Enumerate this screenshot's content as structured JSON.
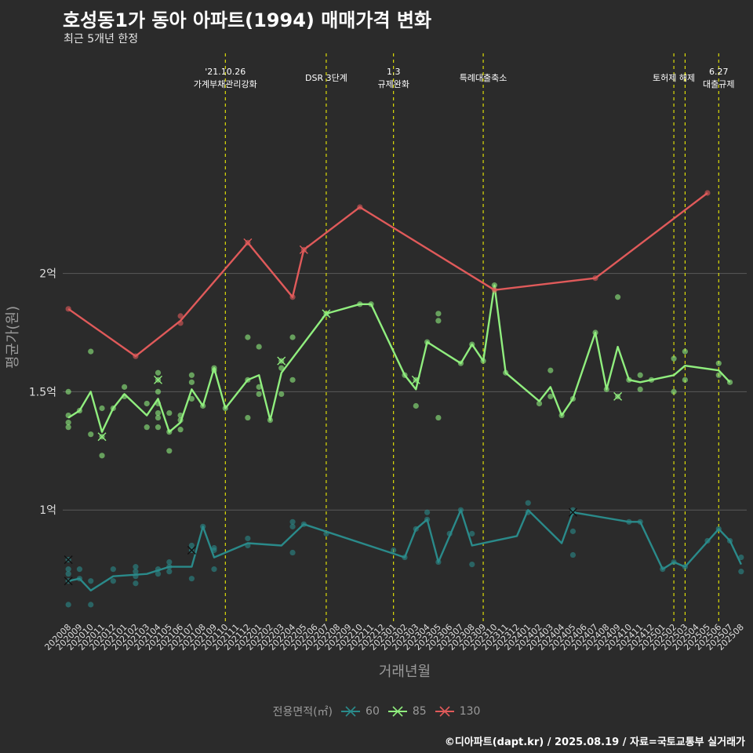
{
  "title": "호성동1가 동아 아파트(1994) 매매가격 변화",
  "subtitle": "최근 5개년 한정",
  "caption": "©디아파트(dapt.kr) / 2025.08.19 / 자료=국토교통부 실거래가",
  "colors": {
    "background": "#2b2b2b",
    "grid": "#5a5a5a",
    "event_line": "#ffff00",
    "s60": "#2a8a8a",
    "s85": "#90ee7e",
    "s130": "#e05a5a"
  },
  "chart_data": {
    "type": "line",
    "xlabel": "거래년월",
    "ylabel": "평균가(원)",
    "ylim": [
      0.53,
      2.95
    ],
    "y_unit": "억",
    "y_ticks": [
      {
        "value": 1.0,
        "label": "1억"
      },
      {
        "value": 1.5,
        "label": "1.5억"
      },
      {
        "value": 2.0,
        "label": "2억"
      }
    ],
    "x_months": [
      "202008",
      "202009",
      "202010",
      "202011",
      "202012",
      "202101",
      "202102",
      "202103",
      "202104",
      "202105",
      "202106",
      "202107",
      "202108",
      "202109",
      "202110",
      "202111",
      "202112",
      "202201",
      "202202",
      "202203",
      "202204",
      "202205",
      "202206",
      "202207",
      "202208",
      "202209",
      "202210",
      "202211",
      "202212",
      "202301",
      "202302",
      "202303",
      "202304",
      "202305",
      "202306",
      "202307",
      "202308",
      "202309",
      "202310",
      "202311",
      "202312",
      "202401",
      "202402",
      "202403",
      "202404",
      "202405",
      "202406",
      "202407",
      "202408",
      "202409",
      "202410",
      "202411",
      "202412",
      "202501",
      "202502",
      "202503",
      "202504",
      "202505",
      "202506",
      "202507",
      "202508"
    ],
    "legend_title": "전용면적(㎡)",
    "events": [
      {
        "month": "202110",
        "lines": [
          "'21.10.26",
          "가계부채관리강화"
        ]
      },
      {
        "month": "202207",
        "lines": [
          "DSR 3단계"
        ]
      },
      {
        "month": "202301",
        "lines": [
          "1.3",
          "규제완화"
        ]
      },
      {
        "month": "202309",
        "lines": [
          "특례대출축소"
        ]
      },
      {
        "month": "202502",
        "lines": [
          "토허제 해제"
        ]
      },
      {
        "month": "202503",
        "lines": []
      },
      {
        "month": "202506",
        "lines": [
          "6.27",
          "대출규제"
        ]
      }
    ],
    "series": [
      {
        "name": "60",
        "color": "#2a8a8a",
        "line": [
          [
            "202008",
            0.7
          ],
          [
            "202009",
            0.71
          ],
          [
            "202010",
            0.66
          ],
          [
            "202012",
            0.72
          ],
          [
            "202103",
            0.73
          ],
          [
            "202105",
            0.76
          ],
          [
            "202107",
            0.76
          ],
          [
            "202108",
            0.93
          ],
          [
            "202109",
            0.8
          ],
          [
            "202112",
            0.86
          ],
          [
            "202203",
            0.85
          ],
          [
            "202205",
            0.94
          ],
          [
            "202302",
            0.8
          ],
          [
            "202303",
            0.92
          ],
          [
            "202304",
            0.96
          ],
          [
            "202305",
            0.78
          ],
          [
            "202307",
            1.0
          ],
          [
            "202308",
            0.85
          ],
          [
            "202312",
            0.89
          ],
          [
            "202401",
            1.0
          ],
          [
            "202404",
            0.86
          ],
          [
            "202405",
            0.99
          ],
          [
            "202410",
            0.95
          ],
          [
            "202411",
            0.95
          ],
          [
            "202501",
            0.75
          ],
          [
            "202502",
            0.78
          ],
          [
            "202503",
            0.76
          ],
          [
            "202506",
            0.92
          ],
          [
            "202507",
            0.87
          ],
          [
            "202508",
            0.77
          ]
        ],
        "points": [
          [
            "202008",
            0.79
          ],
          [
            "202008",
            0.75
          ],
          [
            "202008",
            0.73
          ],
          [
            "202008",
            0.7
          ],
          [
            "202008",
            0.6
          ],
          [
            "202009",
            0.75
          ],
          [
            "202009",
            0.71
          ],
          [
            "202010",
            0.7
          ],
          [
            "202010",
            0.6
          ],
          [
            "202012",
            0.75
          ],
          [
            "202012",
            0.7
          ],
          [
            "202102",
            0.76
          ],
          [
            "202102",
            0.74
          ],
          [
            "202102",
            0.72
          ],
          [
            "202102",
            0.69
          ],
          [
            "202104",
            0.75
          ],
          [
            "202104",
            0.73
          ],
          [
            "202105",
            0.78
          ],
          [
            "202105",
            0.76
          ],
          [
            "202105",
            0.74
          ],
          [
            "202107",
            0.85
          ],
          [
            "202107",
            0.83
          ],
          [
            "202107",
            0.71
          ],
          [
            "202108",
            0.93
          ],
          [
            "202109",
            0.84
          ],
          [
            "202109",
            0.83
          ],
          [
            "202109",
            0.75
          ],
          [
            "202112",
            0.88
          ],
          [
            "202112",
            0.85
          ],
          [
            "202204",
            0.95
          ],
          [
            "202204",
            0.93
          ],
          [
            "202204",
            0.82
          ],
          [
            "202205",
            0.94
          ],
          [
            "202207",
            0.9
          ],
          [
            "202301",
            0.83
          ],
          [
            "202302",
            0.8
          ],
          [
            "202303",
            0.92
          ],
          [
            "202304",
            0.99
          ],
          [
            "202304",
            0.96
          ],
          [
            "202305",
            0.78
          ],
          [
            "202306",
            0.9
          ],
          [
            "202307",
            1.0
          ],
          [
            "202308",
            0.9
          ],
          [
            "202308",
            0.77
          ],
          [
            "202401",
            1.03
          ],
          [
            "202401",
            0.99
          ],
          [
            "202405",
            1.0
          ],
          [
            "202405",
            0.99
          ],
          [
            "202405",
            0.91
          ],
          [
            "202405",
            0.81
          ],
          [
            "202410",
            0.95
          ],
          [
            "202411",
            0.95
          ],
          [
            "202501",
            0.75
          ],
          [
            "202502",
            0.78
          ],
          [
            "202503",
            0.76
          ],
          [
            "202505",
            0.87
          ],
          [
            "202506",
            0.92
          ],
          [
            "202507",
            0.87
          ],
          [
            "202508",
            0.8
          ],
          [
            "202508",
            0.74
          ]
        ],
        "crosses": [
          [
            "202008",
            0.79
          ],
          [
            "202008",
            0.7
          ],
          [
            "202107",
            0.83
          ],
          [
            "202405",
            0.99
          ]
        ]
      },
      {
        "name": "85",
        "color": "#90ee7e",
        "line": [
          [
            "202008",
            1.39
          ],
          [
            "202009",
            1.42
          ],
          [
            "202010",
            1.5
          ],
          [
            "202011",
            1.33
          ],
          [
            "202012",
            1.43
          ],
          [
            "202101",
            1.49
          ],
          [
            "202103",
            1.4
          ],
          [
            "202104",
            1.47
          ],
          [
            "202105",
            1.33
          ],
          [
            "202106",
            1.37
          ],
          [
            "202107",
            1.51
          ],
          [
            "202108",
            1.44
          ],
          [
            "202109",
            1.6
          ],
          [
            "202110",
            1.43
          ],
          [
            "202112",
            1.55
          ],
          [
            "202201",
            1.57
          ],
          [
            "202202",
            1.38
          ],
          [
            "202203",
            1.58
          ],
          [
            "202207",
            1.83
          ],
          [
            "202210",
            1.87
          ],
          [
            "202211",
            1.87
          ],
          [
            "202302",
            1.57
          ],
          [
            "202303",
            1.51
          ],
          [
            "202304",
            1.71
          ],
          [
            "202305",
            1.68
          ],
          [
            "202307",
            1.62
          ],
          [
            "202308",
            1.7
          ],
          [
            "202309",
            1.63
          ],
          [
            "202310",
            1.95
          ],
          [
            "202311",
            1.58
          ],
          [
            "202402",
            1.46
          ],
          [
            "202403",
            1.52
          ],
          [
            "202404",
            1.4
          ],
          [
            "202405",
            1.47
          ],
          [
            "202407",
            1.75
          ],
          [
            "202408",
            1.51
          ],
          [
            "202409",
            1.69
          ],
          [
            "202410",
            1.55
          ],
          [
            "202411",
            1.54
          ],
          [
            "202412",
            1.55
          ],
          [
            "202502",
            1.57
          ],
          [
            "202503",
            1.61
          ],
          [
            "202506",
            1.59
          ],
          [
            "202507",
            1.54
          ]
        ],
        "points": [
          [
            "202008",
            1.5
          ],
          [
            "202008",
            1.4
          ],
          [
            "202008",
            1.37
          ],
          [
            "202008",
            1.35
          ],
          [
            "202009",
            1.42
          ],
          [
            "202010",
            1.67
          ],
          [
            "202010",
            1.32
          ],
          [
            "202011",
            1.43
          ],
          [
            "202011",
            1.31
          ],
          [
            "202011",
            1.23
          ],
          [
            "202012",
            1.43
          ],
          [
            "202101",
            1.52
          ],
          [
            "202101",
            1.48
          ],
          [
            "202103",
            1.45
          ],
          [
            "202103",
            1.35
          ],
          [
            "202104",
            1.58
          ],
          [
            "202104",
            1.55
          ],
          [
            "202104",
            1.5
          ],
          [
            "202104",
            1.45
          ],
          [
            "202104",
            1.41
          ],
          [
            "202104",
            1.39
          ],
          [
            "202104",
            1.35
          ],
          [
            "202105",
            1.41
          ],
          [
            "202105",
            1.33
          ],
          [
            "202105",
            1.25
          ],
          [
            "202106",
            1.4
          ],
          [
            "202106",
            1.38
          ],
          [
            "202106",
            1.34
          ],
          [
            "202107",
            1.57
          ],
          [
            "202107",
            1.54
          ],
          [
            "202107",
            1.47
          ],
          [
            "202108",
            1.44
          ],
          [
            "202109",
            1.6
          ],
          [
            "202109",
            1.59
          ],
          [
            "202110",
            1.43
          ],
          [
            "202112",
            1.73
          ],
          [
            "202112",
            1.55
          ],
          [
            "202112",
            1.39
          ],
          [
            "202201",
            1.69
          ],
          [
            "202201",
            1.52
          ],
          [
            "202201",
            1.49
          ],
          [
            "202202",
            1.38
          ],
          [
            "202203",
            1.63
          ],
          [
            "202203",
            1.6
          ],
          [
            "202203",
            1.49
          ],
          [
            "202204",
            1.73
          ],
          [
            "202204",
            1.55
          ],
          [
            "202207",
            1.83
          ],
          [
            "202210",
            1.87
          ],
          [
            "202211",
            1.87
          ],
          [
            "202302",
            1.57
          ],
          [
            "202303",
            1.55
          ],
          [
            "202303",
            1.44
          ],
          [
            "202304",
            1.71
          ],
          [
            "202305",
            1.83
          ],
          [
            "202305",
            1.8
          ],
          [
            "202305",
            1.39
          ],
          [
            "202307",
            1.62
          ],
          [
            "202308",
            1.7
          ],
          [
            "202309",
            1.63
          ],
          [
            "202310",
            1.95
          ],
          [
            "202311",
            1.58
          ],
          [
            "202402",
            1.45
          ],
          [
            "202403",
            1.59
          ],
          [
            "202403",
            1.48
          ],
          [
            "202404",
            1.4
          ],
          [
            "202405",
            1.47
          ],
          [
            "202407",
            1.75
          ],
          [
            "202408",
            1.51
          ],
          [
            "202409",
            1.9
          ],
          [
            "202409",
            1.48
          ],
          [
            "202410",
            1.55
          ],
          [
            "202411",
            1.57
          ],
          [
            "202411",
            1.51
          ],
          [
            "202412",
            1.55
          ],
          [
            "202502",
            1.64
          ],
          [
            "202502",
            1.5
          ],
          [
            "202503",
            1.67
          ],
          [
            "202503",
            1.55
          ],
          [
            "202506",
            1.62
          ],
          [
            "202506",
            1.57
          ],
          [
            "202507",
            1.54
          ]
        ],
        "crosses": [
          [
            "202011",
            1.31
          ],
          [
            "202104",
            1.55
          ],
          [
            "202203",
            1.63
          ],
          [
            "202207",
            1.83
          ],
          [
            "202303",
            1.55
          ],
          [
            "202409",
            1.48
          ]
        ]
      },
      {
        "name": "130",
        "color": "#e05a5a",
        "line": [
          [
            "202008",
            1.85
          ],
          [
            "202102",
            1.65
          ],
          [
            "202106",
            1.8
          ],
          [
            "202112",
            2.13
          ],
          [
            "202204",
            1.9
          ],
          [
            "202205",
            2.1
          ],
          [
            "202210",
            2.28
          ],
          [
            "202310",
            1.93
          ],
          [
            "202407",
            1.98
          ],
          [
            "202505",
            2.34
          ]
        ],
        "points": [
          [
            "202008",
            1.85
          ],
          [
            "202102",
            1.65
          ],
          [
            "202106",
            1.82
          ],
          [
            "202106",
            1.79
          ],
          [
            "202112",
            2.13
          ],
          [
            "202204",
            1.9
          ],
          [
            "202205",
            2.1
          ],
          [
            "202210",
            2.28
          ],
          [
            "202310",
            1.93
          ],
          [
            "202407",
            1.98
          ],
          [
            "202505",
            2.34
          ]
        ],
        "crosses": [
          [
            "202112",
            2.13
          ],
          [
            "202205",
            2.1
          ]
        ]
      }
    ]
  }
}
